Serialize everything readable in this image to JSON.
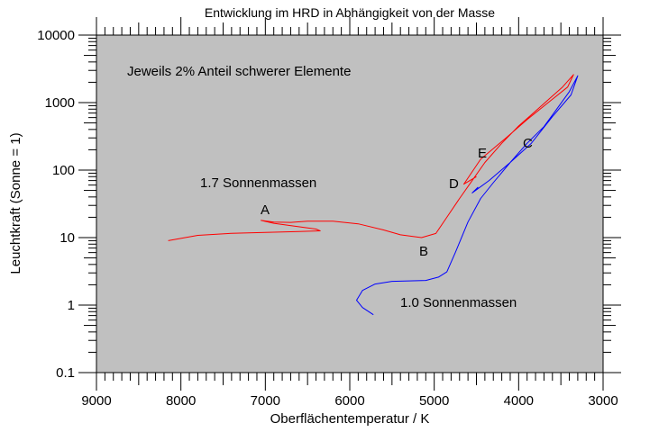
{
  "chart_data": {
    "type": "line",
    "title": "Entwicklung im HRD in Abhängigkeit von der Masse",
    "xlabel": "Oberflächentemperatur / K",
    "ylabel": "Leuchtkraft (Sonne = 1)",
    "x_reversed": true,
    "xlim": [
      9000,
      3000
    ],
    "ylim": [
      0.1,
      10000
    ],
    "y_scale": "log",
    "x_ticks": [
      9000,
      8000,
      7000,
      6000,
      5000,
      4000,
      3000
    ],
    "x_tick_labels": [
      "9000",
      "8000",
      "7000",
      "6000",
      "5000",
      "4000",
      "3000"
    ],
    "y_ticks": [
      10000,
      1000,
      100,
      10,
      1,
      0.1
    ],
    "y_tick_labels": [
      "10000",
      "1000",
      "100",
      "10",
      "1",
      "0.1"
    ],
    "background": "#c0c0c0",
    "grid": false,
    "annotations": {
      "note": "Jeweils 2% Anteil schwerer Elemente",
      "label_17": "1.7 Sonnenmassen",
      "label_10": "1.0 Sonnenmassen",
      "A": "A",
      "B": "B",
      "C": "C",
      "D": "D",
      "E": "E"
    },
    "series": [
      {
        "color": "#ff0000",
        "points": [
          [
            8150,
            9.0
          ],
          [
            7800,
            10.8
          ],
          [
            7400,
            11.6
          ],
          [
            7000,
            11.9
          ],
          [
            6600,
            12.3
          ],
          [
            6350,
            12.6
          ],
          [
            6400,
            13.4
          ],
          [
            6900,
            16.3
          ],
          [
            7050,
            18.0
          ],
          [
            6900,
            17.0
          ],
          [
            6700,
            16.8
          ],
          [
            6500,
            17.5
          ],
          [
            6200,
            17.5
          ],
          [
            5900,
            16.0
          ],
          [
            5600,
            13.0
          ],
          [
            5400,
            11.0
          ],
          [
            5150,
            10.0
          ],
          [
            4980,
            11.5
          ],
          [
            4850,
            20
          ],
          [
            4700,
            38
          ],
          [
            4550,
            70
          ],
          [
            4400,
            130
          ],
          [
            4200,
            250
          ],
          [
            4000,
            450
          ],
          [
            3800,
            750
          ],
          [
            3650,
            1100
          ],
          [
            3480,
            1700
          ],
          [
            3350,
            2600
          ],
          [
            3420,
            1700
          ],
          [
            3650,
            1000
          ],
          [
            3900,
            560
          ],
          [
            4150,
            300
          ],
          [
            4450,
            145
          ],
          [
            4650,
            62
          ],
          [
            4500,
            80
          ]
        ]
      },
      {
        "color": "#0000ff",
        "points": [
          [
            5720,
            0.72
          ],
          [
            5850,
            0.92
          ],
          [
            5920,
            1.18
          ],
          [
            5850,
            1.65
          ],
          [
            5700,
            2.05
          ],
          [
            5500,
            2.25
          ],
          [
            5100,
            2.32
          ],
          [
            4950,
            2.6
          ],
          [
            4850,
            3.1
          ],
          [
            4750,
            6.0
          ],
          [
            4600,
            17
          ],
          [
            4450,
            38
          ],
          [
            4300,
            65
          ],
          [
            4100,
            130
          ],
          [
            3900,
            250
          ],
          [
            3700,
            440
          ],
          [
            3550,
            800
          ],
          [
            3400,
            1450
          ],
          [
            3300,
            2500
          ],
          [
            3380,
            1300
          ],
          [
            3600,
            620
          ],
          [
            3850,
            250
          ],
          [
            4100,
            130
          ],
          [
            4350,
            70
          ],
          [
            4550,
            46
          ],
          [
            4480,
            56
          ]
        ]
      }
    ]
  }
}
